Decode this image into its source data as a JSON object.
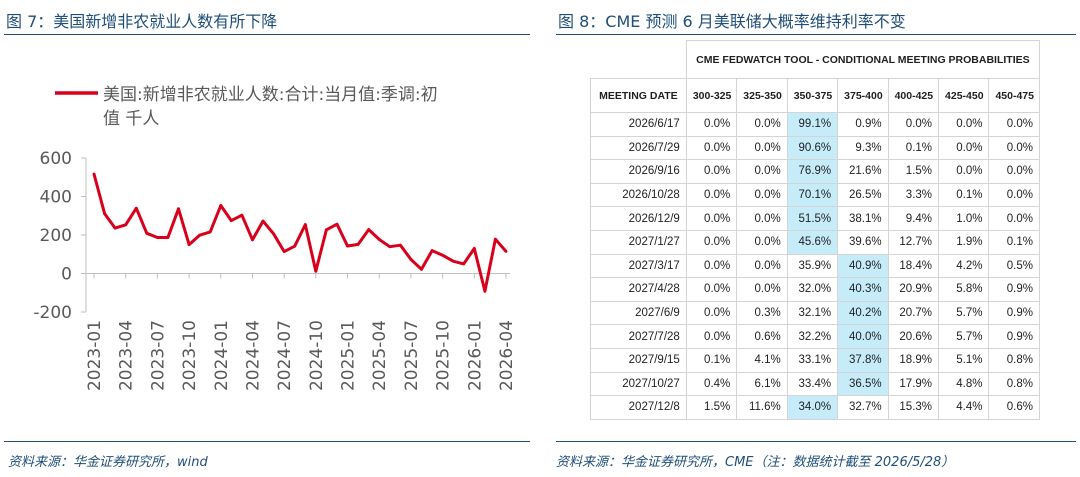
{
  "left": {
    "title": "图 7：美国新增非农就业人数有所下降",
    "source": "资料来源：华金证券研究所，wind"
  },
  "right": {
    "title": "图 8：CME 预测 6 月美联储大概率维持利率不变",
    "source": "资料来源：华金证券研究所，CME（注：数据统计截至 2026/5/28）",
    "table": {
      "tool_header": "CME FEDWATCH TOOL - CONDITIONAL MEETING PROBABILITIES",
      "columns": [
        "MEETING DATE",
        "300-325",
        "325-350",
        "350-375",
        "375-400",
        "400-425",
        "425-450",
        "450-475"
      ],
      "rows": [
        {
          "date": "2026/6/17",
          "values": [
            "0.0%",
            "0.0%",
            "99.1%",
            "0.9%",
            "0.0%",
            "0.0%",
            "0.0%"
          ],
          "highlight": 2
        },
        {
          "date": "2026/7/29",
          "values": [
            "0.0%",
            "0.0%",
            "90.6%",
            "9.3%",
            "0.1%",
            "0.0%",
            "0.0%"
          ],
          "highlight": 2
        },
        {
          "date": "2026/9/16",
          "values": [
            "0.0%",
            "0.0%",
            "76.9%",
            "21.6%",
            "1.5%",
            "0.0%",
            "0.0%"
          ],
          "highlight": 2
        },
        {
          "date": "2026/10/28",
          "values": [
            "0.0%",
            "0.0%",
            "70.1%",
            "26.5%",
            "3.3%",
            "0.1%",
            "0.0%"
          ],
          "highlight": 2
        },
        {
          "date": "2026/12/9",
          "values": [
            "0.0%",
            "0.0%",
            "51.5%",
            "38.1%",
            "9.4%",
            "1.0%",
            "0.0%"
          ],
          "highlight": 2
        },
        {
          "date": "2027/1/27",
          "values": [
            "0.0%",
            "0.0%",
            "45.6%",
            "39.6%",
            "12.7%",
            "1.9%",
            "0.1%"
          ],
          "highlight": 2
        },
        {
          "date": "2027/3/17",
          "values": [
            "0.0%",
            "0.0%",
            "35.9%",
            "40.9%",
            "18.4%",
            "4.2%",
            "0.5%"
          ],
          "highlight": 3
        },
        {
          "date": "2027/4/28",
          "values": [
            "0.0%",
            "0.0%",
            "32.0%",
            "40.3%",
            "20.9%",
            "5.8%",
            "0.9%"
          ],
          "highlight": 3
        },
        {
          "date": "2027/6/9",
          "values": [
            "0.0%",
            "0.3%",
            "32.1%",
            "40.2%",
            "20.7%",
            "5.7%",
            "0.9%"
          ],
          "highlight": 3
        },
        {
          "date": "2027/7/28",
          "values": [
            "0.0%",
            "0.6%",
            "32.2%",
            "40.0%",
            "20.6%",
            "5.7%",
            "0.9%"
          ],
          "highlight": 3
        },
        {
          "date": "2027/9/15",
          "values": [
            "0.1%",
            "4.1%",
            "33.1%",
            "37.8%",
            "18.9%",
            "5.1%",
            "0.8%"
          ],
          "highlight": 3
        },
        {
          "date": "2027/10/27",
          "values": [
            "0.4%",
            "6.1%",
            "33.4%",
            "36.5%",
            "17.9%",
            "4.8%",
            "0.8%"
          ],
          "highlight": 3
        },
        {
          "date": "2027/12/8",
          "values": [
            "1.5%",
            "11.6%",
            "34.0%",
            "32.7%",
            "15.3%",
            "4.4%",
            "0.6%"
          ],
          "highlight": 2
        }
      ],
      "highlight_color": "#c6ecfa"
    }
  },
  "chart_data": {
    "type": "line",
    "title": "",
    "xlabel": "",
    "ylabel": "",
    "ylim": [
      -200,
      600
    ],
    "yticks": [
      -200,
      0,
      200,
      400,
      600
    ],
    "xtick_labels": [
      "2023-01",
      "2023-04",
      "2023-07",
      "2023-10",
      "2024-01",
      "2024-04",
      "2024-07",
      "2024-10",
      "2025-01",
      "2025-04",
      "2025-07",
      "2025-10",
      "2026-01",
      "2026-04"
    ],
    "grid": false,
    "legend_position": "top",
    "series": [
      {
        "name": "美国:新增非农就业人数:合计:当月值:季调:初值 千人",
        "color": "#d9001b",
        "x": [
          "2023-01",
          "2023-02",
          "2023-03",
          "2023-04",
          "2023-05",
          "2023-06",
          "2023-07",
          "2023-08",
          "2023-09",
          "2023-10",
          "2023-11",
          "2023-12",
          "2024-01",
          "2024-02",
          "2024-03",
          "2024-04",
          "2024-05",
          "2024-06",
          "2024-07",
          "2024-08",
          "2024-09",
          "2024-10",
          "2024-11",
          "2024-12",
          "2025-01",
          "2025-02",
          "2025-03",
          "2025-04",
          "2025-05",
          "2025-06",
          "2025-07",
          "2025-08",
          "2025-09",
          "2025-10",
          "2025-11",
          "2025-12",
          "2026-01",
          "2026-02",
          "2026-03",
          "2026-04"
        ],
        "values": [
          517,
          311,
          236,
          253,
          339,
          209,
          187,
          187,
          336,
          150,
          199,
          216,
          353,
          275,
          303,
          175,
          272,
          206,
          114,
          142,
          254,
          12,
          227,
          256,
          143,
          151,
          228,
          177,
          139,
          147,
          73,
          22,
          119,
          95,
          64,
          50,
          130,
          -92,
          178,
          115
        ]
      }
    ]
  }
}
